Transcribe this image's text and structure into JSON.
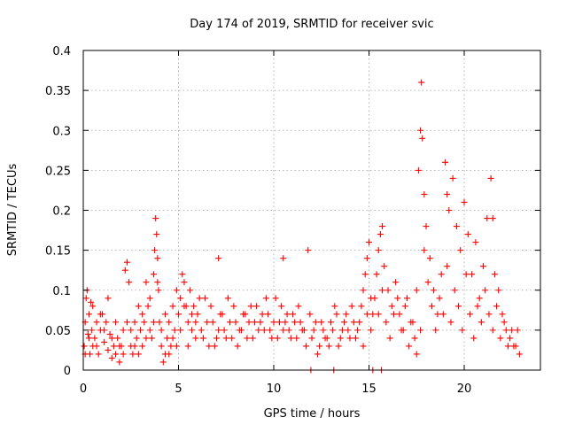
{
  "chart_data": {
    "type": "scatter",
    "title": "Day 174 of 2019, SRMTID for receiver svic",
    "xlabel": "GPS time / hours",
    "ylabel": "SRMTID / TECUs",
    "xlim": [
      0,
      24
    ],
    "ylim": [
      0,
      0.4
    ],
    "x_ticks": [
      "0",
      "5",
      "10",
      "15",
      "20"
    ],
    "x_tick_values": [
      0,
      5,
      10,
      15,
      20
    ],
    "y_ticks": [
      "0",
      "0.05",
      "0.1",
      "0.15",
      "0.2",
      "0.25",
      "0.3",
      "0.35",
      "0.4"
    ],
    "y_tick_values": [
      0,
      0.05,
      0.1,
      0.15,
      0.2,
      0.25,
      0.3,
      0.35,
      0.4
    ],
    "grid": true,
    "marker": "plus",
    "color": "#ff0000",
    "series": [
      {
        "points": [
          [
            0.05,
            0.03
          ],
          [
            0.1,
            0.06
          ],
          [
            0.15,
            0.09
          ],
          [
            0.2,
            0.1
          ],
          [
            0.25,
            0.045
          ],
          [
            0.3,
            0.07
          ],
          [
            0.35,
            0.02
          ],
          [
            0.4,
            0.085
          ],
          [
            0.45,
            0.05
          ],
          [
            0.5,
            0.03
          ],
          [
            0.6,
            0.04
          ],
          [
            0.7,
            0.06
          ],
          [
            0.8,
            0.02
          ],
          [
            0.9,
            0.05
          ],
          [
            1.0,
            0.07
          ],
          [
            1.1,
            0.035
          ],
          [
            1.2,
            0.06
          ],
          [
            1.3,
            0.025
          ],
          [
            1.4,
            0.045
          ],
          [
            1.5,
            0.015
          ],
          [
            1.6,
            0.03
          ],
          [
            1.7,
            0.02
          ],
          [
            1.8,
            0.04
          ],
          [
            1.9,
            0.01
          ],
          [
            2.0,
            0.03
          ],
          [
            2.1,
            0.05
          ],
          [
            2.2,
            0.125
          ],
          [
            2.3,
            0.135
          ],
          [
            2.4,
            0.11
          ],
          [
            2.5,
            0.03
          ],
          [
            2.6,
            0.02
          ],
          [
            2.7,
            0.06
          ],
          [
            2.8,
            0.04
          ],
          [
            2.9,
            0.08
          ],
          [
            3.0,
            0.05
          ],
          [
            3.1,
            0.03
          ],
          [
            3.2,
            0.06
          ],
          [
            3.3,
            0.11
          ],
          [
            3.4,
            0.08
          ],
          [
            3.5,
            0.05
          ],
          [
            3.6,
            0.04
          ],
          [
            3.7,
            0.12
          ],
          [
            3.75,
            0.15
          ],
          [
            3.8,
            0.19
          ],
          [
            3.85,
            0.17
          ],
          [
            3.9,
            0.14
          ],
          [
            3.95,
            0.1
          ],
          [
            4.0,
            0.06
          ],
          [
            4.1,
            0.03
          ],
          [
            4.2,
            0.01
          ],
          [
            4.3,
            0.02
          ],
          [
            4.4,
            0.04
          ],
          [
            4.5,
            0.06
          ],
          [
            4.6,
            0.03
          ],
          [
            4.7,
            0.08
          ],
          [
            4.8,
            0.05
          ],
          [
            4.9,
            0.1
          ],
          [
            5.0,
            0.07
          ],
          [
            5.1,
            0.09
          ],
          [
            5.2,
            0.12
          ],
          [
            5.3,
            0.11
          ],
          [
            5.4,
            0.08
          ],
          [
            5.5,
            0.06
          ],
          [
            5.6,
            0.1
          ],
          [
            5.7,
            0.05
          ],
          [
            5.8,
            0.08
          ],
          [
            5.9,
            0.04
          ],
          [
            6.0,
            0.07
          ],
          [
            6.2,
            0.05
          ],
          [
            6.4,
            0.09
          ],
          [
            6.6,
            0.03
          ],
          [
            6.8,
            0.06
          ],
          [
            7.0,
            0.04
          ],
          [
            7.1,
            0.14
          ],
          [
            7.2,
            0.07
          ],
          [
            7.4,
            0.05
          ],
          [
            7.6,
            0.09
          ],
          [
            7.8,
            0.04
          ],
          [
            8.0,
            0.06
          ],
          [
            8.2,
            0.05
          ],
          [
            8.4,
            0.07
          ],
          [
            8.6,
            0.04
          ],
          [
            8.8,
            0.08
          ],
          [
            9.0,
            0.06
          ],
          [
            9.2,
            0.05
          ],
          [
            9.4,
            0.07
          ],
          [
            9.6,
            0.09
          ],
          [
            9.8,
            0.05
          ],
          [
            10.0,
            0.06
          ],
          [
            10.2,
            0.04
          ],
          [
            10.4,
            0.08
          ],
          [
            10.5,
            0.14
          ],
          [
            10.6,
            0.06
          ],
          [
            10.8,
            0.05
          ],
          [
            11.0,
            0.07
          ],
          [
            11.2,
            0.04
          ],
          [
            11.4,
            0.06
          ],
          [
            11.6,
            0.05
          ],
          [
            11.8,
            0.15
          ],
          [
            12.0,
            0.04
          ],
          [
            12.2,
            0.06
          ],
          [
            12.4,
            0.03
          ],
          [
            12.6,
            0.05
          ],
          [
            12.8,
            0.04
          ],
          [
            13.0,
            0.06
          ],
          [
            13.2,
            0.08
          ],
          [
            13.4,
            0.03
          ],
          [
            13.6,
            0.05
          ],
          [
            13.8,
            0.07
          ],
          [
            14.0,
            0.04
          ],
          [
            14.2,
            0.06
          ],
          [
            14.4,
            0.05
          ],
          [
            14.6,
            0.08
          ],
          [
            14.7,
            0.1
          ],
          [
            14.8,
            0.12
          ],
          [
            14.9,
            0.14
          ],
          [
            15.0,
            0.16
          ],
          [
            15.1,
            0.09
          ],
          [
            15.2,
            0.07
          ],
          [
            15.4,
            0.12
          ],
          [
            15.5,
            0.15
          ],
          [
            15.6,
            0.17
          ],
          [
            15.7,
            0.18
          ],
          [
            15.8,
            0.13
          ],
          [
            16.0,
            0.1
          ],
          [
            16.2,
            0.08
          ],
          [
            16.4,
            0.11
          ],
          [
            16.6,
            0.07
          ],
          [
            16.8,
            0.05
          ],
          [
            17.0,
            0.09
          ],
          [
            17.2,
            0.06
          ],
          [
            17.4,
            0.04
          ],
          [
            17.5,
            0.02
          ],
          [
            17.6,
            0.25
          ],
          [
            17.7,
            0.3
          ],
          [
            17.75,
            0.36
          ],
          [
            17.8,
            0.29
          ],
          [
            17.9,
            0.22
          ],
          [
            18.0,
            0.18
          ],
          [
            18.2,
            0.14
          ],
          [
            18.4,
            0.1
          ],
          [
            18.6,
            0.07
          ],
          [
            18.8,
            0.12
          ],
          [
            19.0,
            0.26
          ],
          [
            19.1,
            0.22
          ],
          [
            19.2,
            0.2
          ],
          [
            19.4,
            0.24
          ],
          [
            19.6,
            0.18
          ],
          [
            19.8,
            0.15
          ],
          [
            20.0,
            0.21
          ],
          [
            20.2,
            0.17
          ],
          [
            20.4,
            0.12
          ],
          [
            20.6,
            0.16
          ],
          [
            20.8,
            0.09
          ],
          [
            21.0,
            0.13
          ],
          [
            21.2,
            0.19
          ],
          [
            21.4,
            0.24
          ],
          [
            21.5,
            0.19
          ],
          [
            21.6,
            0.12
          ],
          [
            21.8,
            0.1
          ],
          [
            22.0,
            0.07
          ],
          [
            22.2,
            0.05
          ],
          [
            22.4,
            0.04
          ],
          [
            22.6,
            0.03
          ],
          [
            22.8,
            0.05
          ],
          [
            22.9,
            0.02
          ]
        ]
      },
      {
        "points": [
          [
            0.1,
            0.02
          ],
          [
            0.3,
            0.04
          ],
          [
            0.5,
            0.08
          ],
          [
            0.7,
            0.03
          ],
          [
            0.9,
            0.07
          ],
          [
            1.1,
            0.05
          ],
          [
            1.3,
            0.09
          ],
          [
            1.5,
            0.04
          ],
          [
            1.7,
            0.06
          ],
          [
            1.9,
            0.03
          ],
          [
            2.1,
            0.02
          ],
          [
            2.3,
            0.06
          ],
          [
            2.5,
            0.05
          ],
          [
            2.7,
            0.03
          ],
          [
            2.9,
            0.02
          ],
          [
            3.1,
            0.07
          ],
          [
            3.3,
            0.04
          ],
          [
            3.5,
            0.09
          ],
          [
            3.7,
            0.06
          ],
          [
            3.9,
            0.11
          ],
          [
            4.1,
            0.05
          ],
          [
            4.3,
            0.07
          ],
          [
            4.5,
            0.02
          ],
          [
            4.7,
            0.04
          ],
          [
            4.9,
            0.03
          ],
          [
            5.1,
            0.05
          ],
          [
            5.3,
            0.08
          ],
          [
            5.5,
            0.03
          ],
          [
            5.7,
            0.07
          ],
          [
            5.9,
            0.06
          ],
          [
            6.1,
            0.09
          ],
          [
            6.3,
            0.04
          ],
          [
            6.5,
            0.06
          ],
          [
            6.7,
            0.08
          ],
          [
            6.9,
            0.03
          ],
          [
            7.1,
            0.05
          ],
          [
            7.3,
            0.07
          ],
          [
            7.5,
            0.04
          ],
          [
            7.7,
            0.06
          ],
          [
            7.9,
            0.08
          ],
          [
            8.1,
            0.03
          ],
          [
            8.3,
            0.05
          ],
          [
            8.5,
            0.07
          ],
          [
            8.7,
            0.06
          ],
          [
            8.9,
            0.04
          ],
          [
            9.1,
            0.08
          ],
          [
            9.3,
            0.06
          ],
          [
            9.5,
            0.05
          ],
          [
            9.7,
            0.07
          ],
          [
            9.9,
            0.04
          ],
          [
            10.1,
            0.09
          ],
          [
            10.3,
            0.06
          ],
          [
            10.5,
            0.05
          ],
          [
            10.7,
            0.07
          ],
          [
            10.9,
            0.04
          ],
          [
            11.1,
            0.06
          ],
          [
            11.3,
            0.08
          ],
          [
            11.5,
            0.05
          ],
          [
            11.7,
            0.03
          ],
          [
            11.9,
            0.07
          ],
          [
            12.1,
            0.05
          ],
          [
            12.3,
            0.02
          ],
          [
            12.5,
            0.06
          ],
          [
            12.7,
            0.04
          ],
          [
            12.9,
            0.03
          ],
          [
            13.1,
            0.05
          ],
          [
            13.3,
            0.07
          ],
          [
            13.5,
            0.04
          ],
          [
            13.7,
            0.06
          ],
          [
            13.9,
            0.05
          ],
          [
            14.1,
            0.08
          ],
          [
            14.3,
            0.04
          ],
          [
            14.5,
            0.06
          ],
          [
            14.7,
            0.03
          ],
          [
            14.9,
            0.07
          ],
          [
            15.1,
            0.05
          ],
          [
            15.3,
            0.09
          ],
          [
            15.5,
            0.07
          ],
          [
            15.7,
            0.1
          ],
          [
            15.9,
            0.06
          ],
          [
            16.1,
            0.04
          ],
          [
            16.3,
            0.07
          ],
          [
            16.5,
            0.09
          ],
          [
            16.7,
            0.05
          ],
          [
            16.9,
            0.08
          ],
          [
            17.1,
            0.03
          ],
          [
            17.3,
            0.06
          ],
          [
            17.5,
            0.1
          ],
          [
            17.7,
            0.05
          ],
          [
            17.9,
            0.15
          ],
          [
            18.1,
            0.11
          ],
          [
            18.3,
            0.08
          ],
          [
            18.5,
            0.05
          ],
          [
            18.7,
            0.09
          ],
          [
            18.9,
            0.07
          ],
          [
            19.1,
            0.13
          ],
          [
            19.3,
            0.06
          ],
          [
            19.5,
            0.1
          ],
          [
            19.7,
            0.08
          ],
          [
            19.9,
            0.05
          ],
          [
            20.1,
            0.12
          ],
          [
            20.3,
            0.07
          ],
          [
            20.5,
            0.04
          ],
          [
            20.7,
            0.08
          ],
          [
            20.9,
            0.06
          ],
          [
            21.1,
            0.1
          ],
          [
            21.3,
            0.07
          ],
          [
            21.5,
            0.05
          ],
          [
            21.7,
            0.08
          ],
          [
            21.9,
            0.04
          ],
          [
            22.1,
            0.06
          ],
          [
            22.3,
            0.03
          ],
          [
            22.5,
            0.05
          ],
          [
            22.7,
            0.03
          ]
        ]
      },
      {
        "points": [
          [
            11.95,
            0
          ],
          [
            13.15,
            0
          ],
          [
            15.2,
            0
          ],
          [
            15.65,
            0
          ]
        ]
      }
    ]
  }
}
